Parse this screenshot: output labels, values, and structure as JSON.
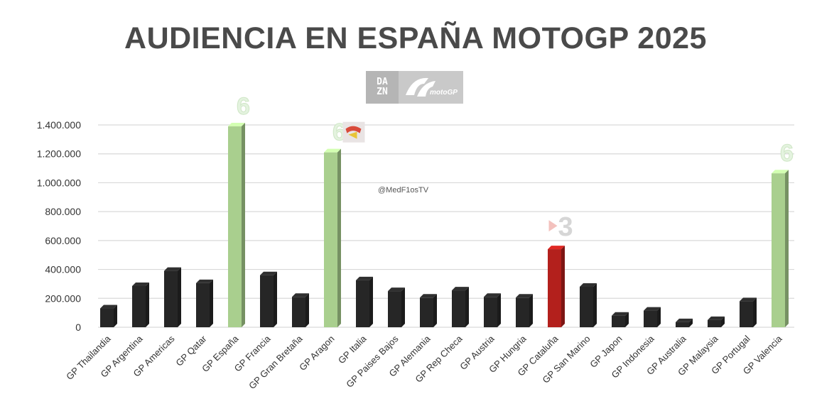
{
  "header": {
    "title": "AUDIENCIA EN ESPAÑA MOTOGP 2025",
    "watermark": "@MedF1osTV",
    "logos": [
      "dazn-logo",
      "motogp-logo"
    ],
    "dazn_line1": "DA",
    "dazn_line2": "ZN"
  },
  "colors": {
    "black_bar": "#262626",
    "green_bar": "#a9cf8e",
    "red_bar": "#b3201c",
    "grid": "#d9d9d9",
    "title": "#4a4a4a"
  },
  "chart_data": {
    "type": "bar",
    "title": "AUDIENCIA EN ESPAÑA MOTOGP 2025",
    "xlabel": "",
    "ylabel": "",
    "ylim": [
      0,
      1400000
    ],
    "yticks": [
      0,
      200000,
      400000,
      600000,
      800000,
      1000000,
      1200000,
      1400000
    ],
    "ytick_labels": [
      "0",
      "200.000",
      "400.000",
      "600.000",
      "800.000",
      "1.000.000",
      "1.200.000",
      "1.400.000"
    ],
    "grid": true,
    "legend": "none",
    "categories": [
      "GP Thailandia",
      "GP Argentina",
      "GP Americas",
      "GP Qatar",
      "GP España",
      "GP Francia",
      "GP Gran Bretaña",
      "GP Aragon",
      "GP Italia",
      "GP Paises Bajos",
      "GP Alemania",
      "GP Rep Checa",
      "GP Austria",
      "GP Hungria",
      "GP Cataluña",
      "GP San Marino",
      "GP Japon",
      "GP Indonesia",
      "GP Australia",
      "GP Malaysia",
      "GP Portugal",
      "GP Valencia"
    ],
    "values": [
      130000,
      285000,
      390000,
      305000,
      1390000,
      360000,
      210000,
      1210000,
      325000,
      250000,
      205000,
      255000,
      210000,
      205000,
      540000,
      280000,
      80000,
      115000,
      35000,
      50000,
      180000,
      1065000
    ],
    "bar_colors": [
      "black",
      "black",
      "black",
      "black",
      "green",
      "black",
      "black",
      "green",
      "black",
      "black",
      "black",
      "black",
      "black",
      "black",
      "red",
      "black",
      "black",
      "black",
      "black",
      "black",
      "black",
      "green"
    ],
    "annotations": [
      {
        "category": "GP España",
        "text": "6",
        "icon": "la6-logo"
      },
      {
        "category": "GP Aragon",
        "text": "6",
        "icon": "la6-logo"
      },
      {
        "category": "GP Aragon",
        "text": "",
        "icon": "aragon-tv-logo"
      },
      {
        "category": "GP Cataluña",
        "text": "3",
        "icon": "tv3-logo"
      },
      {
        "category": "GP Valencia",
        "text": "6",
        "icon": "la6-logo"
      }
    ]
  }
}
